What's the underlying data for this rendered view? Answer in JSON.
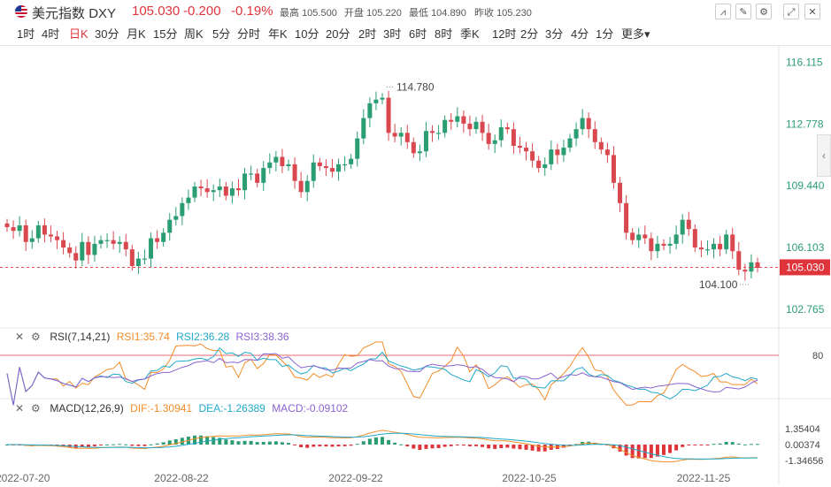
{
  "header": {
    "name": "美元指数",
    "symbol": "DXY",
    "price": "105.030",
    "change": "-0.200",
    "change_pct": "-0.19%",
    "high_label": "最高",
    "high": "105.500",
    "open_label": "开盘",
    "open": "105.220",
    "low_label": "最低",
    "low": "104.890",
    "prev_label": "昨收",
    "prev": "105.230"
  },
  "toolbar": [
    "line-chart-icon",
    "draw-icon",
    "settings-icon",
    "fullscreen-icon",
    "close-icon"
  ],
  "periods": [
    "1时",
    "4时",
    "日K",
    "30分",
    "月K",
    "15分",
    "周K",
    "5分",
    "分时",
    "年K",
    "10分",
    "20分",
    "2时",
    "3时",
    "6时",
    "8时",
    "季K",
    "12时",
    "2分",
    "3分",
    "4分",
    "1分",
    "更多▾"
  ],
  "active_period": "日K",
  "colors": {
    "up": "#2a9d72",
    "down": "#d9474f",
    "rsi1": "#f28c28",
    "rsi2": "#1fa8c9",
    "rsi3": "#8a63d2",
    "dif": "#f28c28",
    "dea": "#1fa8c9",
    "macd_hist": "#e0343b"
  },
  "rsi": {
    "title": "RSI(7,14,21)",
    "rsi1": "RSI1:35.74",
    "rsi2": "RSI2:36.28",
    "rsi3": "RSI3:38.36",
    "level": "80"
  },
  "macd": {
    "title": "MACD(12,26,9)",
    "dif": "DIF:-1.30941",
    "dea": "DEA:-1.26389",
    "macdv": "MACD:-0.09102",
    "ticks": [
      "1.35404",
      "0.00374",
      "-1.34656"
    ]
  },
  "chart_data": {
    "type": "candlestick",
    "y_ticks": [
      "116.115",
      "112.778",
      "109.440",
      "106.103",
      "102.765"
    ],
    "ylim": [
      101.8,
      117.0
    ],
    "x_labels": [
      "2022-07-20",
      "2022-08-22",
      "2022-09-22",
      "2022-10-25",
      "2022-11-25"
    ],
    "current_price_label": "105.030",
    "annotations": {
      "high": "114.780",
      "low": "104.100"
    },
    "closes": [
      107.2,
      107.0,
      107.3,
      106.4,
      106.6,
      107.3,
      106.8,
      106.7,
      106.5,
      106.1,
      105.8,
      105.4,
      106.4,
      105.7,
      106.3,
      106.5,
      106.5,
      106.3,
      106.4,
      106.0,
      105.1,
      105.5,
      105.5,
      106.6,
      106.4,
      106.9,
      107.6,
      107.8,
      108.5,
      108.8,
      109.4,
      109.3,
      109.1,
      109.2,
      109.4,
      108.9,
      109.3,
      109.2,
      110.1,
      110.1,
      109.6,
      110.4,
      110.7,
      111.0,
      110.5,
      110.6,
      109.7,
      109.1,
      109.7,
      110.7,
      110.5,
      110.4,
      110.2,
      110.6,
      110.6,
      110.9,
      112.0,
      113.1,
      113.9,
      114.1,
      114.2,
      112.3,
      112.1,
      112.3,
      111.8,
      111.2,
      111.3,
      112.4,
      112.3,
      112.3,
      113.0,
      112.9,
      113.2,
      112.8,
      112.5,
      112.9,
      112.3,
      111.7,
      111.9,
      112.6,
      112.5,
      111.6,
      111.5,
      111.3,
      110.8,
      110.4,
      110.6,
      111.4,
      111.1,
      111.5,
      112.0,
      112.5,
      113.1,
      112.5,
      111.8,
      111.4,
      111.1,
      109.6,
      108.5,
      106.9,
      106.5,
      106.8,
      106.6,
      105.9,
      106.3,
      106.2,
      106.3,
      106.8,
      107.6,
      107.1,
      106.1,
      106.0,
      106.0,
      106.3,
      106.0,
      106.8,
      105.9,
      104.9,
      104.8,
      105.3,
      105.0
    ]
  }
}
